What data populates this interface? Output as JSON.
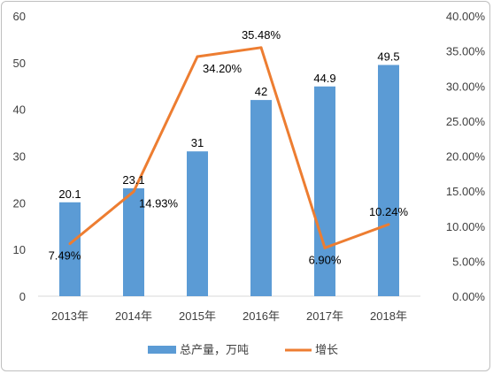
{
  "chart_data": {
    "type": "bar",
    "categories": [
      "2013年",
      "2014年",
      "2015年",
      "2016年",
      "2017年",
      "2018年"
    ],
    "series": [
      {
        "name": "总产量，万吨",
        "type": "bar",
        "axis": "left",
        "values": [
          20.1,
          23.1,
          31,
          42,
          44.9,
          49.5
        ],
        "labels": [
          "20.1",
          "23.1",
          "31",
          "42",
          "44.9",
          "49.5"
        ],
        "color": "#5b9bd5"
      },
      {
        "name": "增长",
        "type": "line",
        "axis": "right",
        "values": [
          7.49,
          14.93,
          34.2,
          35.48,
          6.9,
          10.24
        ],
        "labels": [
          "7.49%",
          "14.93%",
          "34.20%",
          "35.48%",
          "6.90%",
          "10.24%"
        ],
        "color": "#ed7d31"
      }
    ],
    "y_left": {
      "range": [
        0,
        60
      ],
      "ticks": [
        "0",
        "10",
        "20",
        "30",
        "40",
        "50",
        "60"
      ]
    },
    "y_right": {
      "range": [
        0,
        40
      ],
      "ticks": [
        "0.00%",
        "5.00%",
        "10.00%",
        "15.00%",
        "20.00%",
        "25.00%",
        "30.00%",
        "35.00%",
        "40.00%"
      ]
    },
    "grid": false,
    "legend_position": "bottom"
  }
}
